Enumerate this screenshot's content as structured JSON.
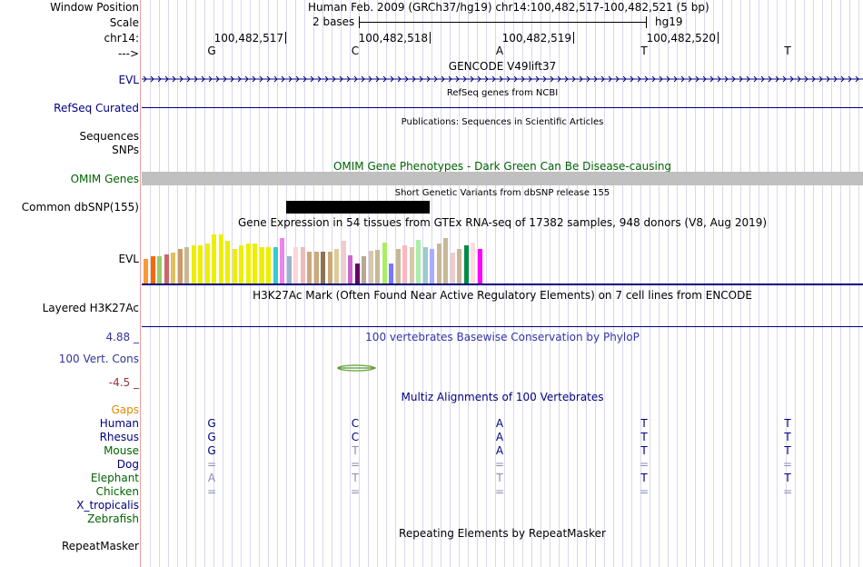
{
  "header": {
    "window_position_label": "Window Position",
    "window_position_value": "Human Feb. 2009 (GRCh37/hg19)   chr14:100,482,517-100,482,521 (5 bp)",
    "scale_label": "Scale",
    "scale_value": "2 bases",
    "scale_assembly": "hg19",
    "chrom_label": "chr14:",
    "strand_label": "--->",
    "ticks": [
      "100,482,517",
      "100,482,518",
      "100,482,519",
      "100,482,520"
    ],
    "bases": [
      "G",
      "C",
      "A",
      "T",
      "T"
    ]
  },
  "tracks": {
    "evl": {
      "label": "EVL",
      "title": "GENCODE V49lift37"
    },
    "refseq": {
      "label": "RefSeq Curated",
      "title": "RefSeq genes from NCBI"
    },
    "publications": {
      "title": "Publications: Sequences in Scientific Articles",
      "label1": "Sequences",
      "label2": "SNPs"
    },
    "omim": {
      "label": "OMIM Genes",
      "title": "OMIM Gene Phenotypes - Dark Green Can Be Disease-causing"
    },
    "dbsnp": {
      "label": "Common dbSNP(155)",
      "title": "Short Genetic Variants from dbSNP release 155"
    },
    "gtex": {
      "label": "EVL",
      "title": "Gene Expression in 54 tissues from GTEx RNA-seq of 17382 samples, 948 donors (V8, Aug 2019)"
    },
    "h3k27ac": {
      "label": "Layered H3K27Ac",
      "title": "H3K27Ac Mark (Often Found Near Active Regulatory Elements) on 7 cell lines from ENCODE"
    },
    "phylop": {
      "title": "100 vertebrates Basewise Conservation by PhyloP",
      "label": "100 Vert. Cons",
      "max": "4.88 _",
      "min": "-4.5 _"
    },
    "multiz": {
      "title": "Multiz Alignments of 100 Vertebrates",
      "gaps_label": "Gaps"
    },
    "repeatmasker": {
      "label": "RepeatMasker",
      "title": "Repeating Elements by RepeatMasker"
    }
  },
  "species": [
    {
      "name": "Human",
      "color": "#000080",
      "bases": [
        "G",
        "C",
        "A",
        "T",
        "T"
      ]
    },
    {
      "name": "Rhesus",
      "color": "#000080",
      "bases": [
        "G",
        "C",
        "A",
        "T",
        "T"
      ]
    },
    {
      "name": "Mouse",
      "color": "#006400",
      "bases": [
        "G",
        "T",
        "A",
        "T",
        "T"
      ]
    },
    {
      "name": "Dog",
      "color": "#000080",
      "bases": [
        "=",
        "=",
        "=",
        "=",
        "="
      ]
    },
    {
      "name": "Elephant",
      "color": "#006400",
      "bases": [
        "A",
        "T",
        "T",
        "T",
        "T"
      ]
    },
    {
      "name": "Chicken",
      "color": "#006400",
      "bases": [
        "=",
        "=",
        "=",
        "=",
        "="
      ]
    },
    {
      "name": "X_tropicalis",
      "color": "#000080",
      "bases": [
        "",
        "",
        "",
        "",
        ""
      ]
    },
    {
      "name": "Zebrafish",
      "color": "#006400",
      "bases": [
        "",
        "",
        "",
        "",
        ""
      ]
    }
  ],
  "gtex_tissues": [
    {
      "color": "#ff9933",
      "value": 27
    },
    {
      "color": "#ff6600",
      "value": 30
    },
    {
      "color": "#99cc66",
      "value": 30
    },
    {
      "color": "#cc6666",
      "value": 32
    },
    {
      "color": "#e0c060",
      "value": 34
    },
    {
      "color": "#cc9966",
      "value": 38
    },
    {
      "color": "#c8b898",
      "value": 40
    },
    {
      "color": "#eeee00",
      "value": 42
    },
    {
      "color": "#eeee00",
      "value": 42
    },
    {
      "color": "#eeee00",
      "value": 44
    },
    {
      "color": "#eeee00",
      "value": 54
    },
    {
      "color": "#eeee00",
      "value": 54
    },
    {
      "color": "#eeee00",
      "value": 47
    },
    {
      "color": "#eeee00",
      "value": 38
    },
    {
      "color": "#eeee00",
      "value": 42
    },
    {
      "color": "#eeee00",
      "value": 44
    },
    {
      "color": "#eeee00",
      "value": 44
    },
    {
      "color": "#eeee00",
      "value": 40
    },
    {
      "color": "#eeee00",
      "value": 40
    },
    {
      "color": "#33cccc",
      "value": 40
    },
    {
      "color": "#ee82ee",
      "value": 50
    },
    {
      "color": "#99b3cc",
      "value": 30
    },
    {
      "color": "#ffd5d5",
      "value": 40
    },
    {
      "color": "#eebbbb",
      "value": 40
    },
    {
      "color": "#cca978",
      "value": 35
    },
    {
      "color": "#cca978",
      "value": 35
    },
    {
      "color": "#8b7355",
      "value": 35
    },
    {
      "color": "#cca978",
      "value": 35
    },
    {
      "color": "#ddcc99",
      "value": 38
    },
    {
      "color": "#eecccc",
      "value": 47
    },
    {
      "color": "#cc66cc",
      "value": 31
    },
    {
      "color": "#660066",
      "value": 22
    },
    {
      "color": "#b8a890",
      "value": 30
    },
    {
      "color": "#d8c8a8",
      "value": 36
    },
    {
      "color": "#c8b898",
      "value": 37
    },
    {
      "color": "#aaee66",
      "value": 45
    },
    {
      "color": "#7777ff",
      "value": 22
    },
    {
      "color": "#c8b898",
      "value": 38
    },
    {
      "color": "#ffb6c1",
      "value": 42
    },
    {
      "color": "#d8c8a8",
      "value": 40
    },
    {
      "color": "#aaeeaa",
      "value": 48
    },
    {
      "color": "#99cccc",
      "value": 40
    },
    {
      "color": "#aaaaff",
      "value": 38
    },
    {
      "color": "#c8b898",
      "value": 44
    },
    {
      "color": "#c8b898",
      "value": 50
    },
    {
      "color": "#eecccc",
      "value": 34
    },
    {
      "color": "#c8b898",
      "value": 38
    },
    {
      "color": "#008b45",
      "value": 42
    },
    {
      "color": "#ffdddd",
      "value": 45
    },
    {
      "color": "#ff00ff",
      "value": 38
    }
  ]
}
